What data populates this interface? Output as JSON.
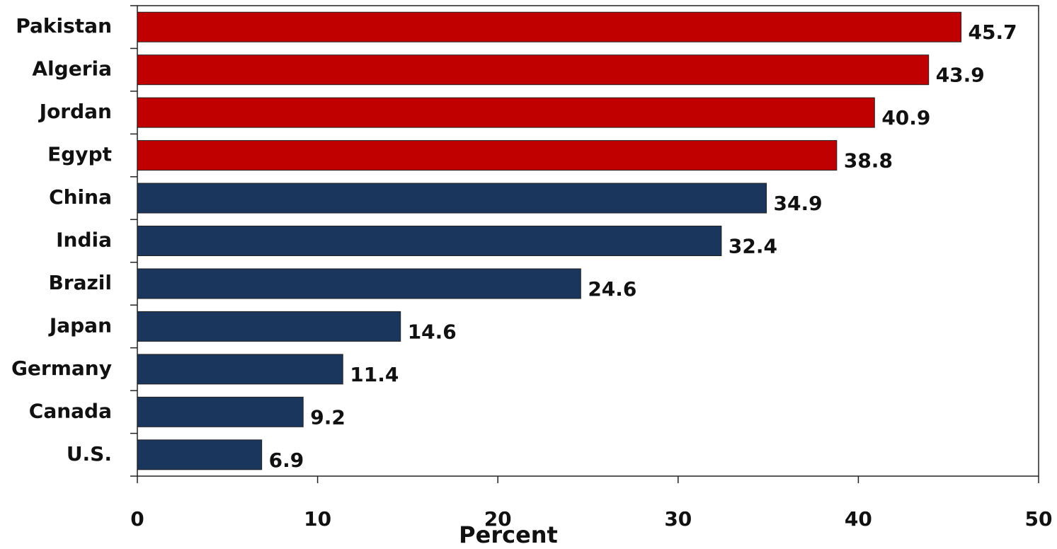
{
  "chart_data": {
    "type": "barh",
    "categories": [
      "Pakistan",
      "Algeria",
      "Jordan",
      "Egypt",
      "China",
      "India",
      "Brazil",
      "Japan",
      "Germany",
      "Canada",
      "U.S."
    ],
    "values": [
      45.7,
      43.9,
      40.9,
      38.8,
      34.9,
      32.4,
      24.6,
      14.6,
      11.4,
      9.2,
      6.9
    ],
    "colors": [
      "#c00000",
      "#c00000",
      "#c00000",
      "#c00000",
      "#1b365d",
      "#1b365d",
      "#1b365d",
      "#1b365d",
      "#1b365d",
      "#1b365d",
      "#1b365d"
    ],
    "xlabel": "Percent",
    "xlim": [
      0,
      50
    ],
    "xticks": [
      0,
      10,
      20,
      30,
      40,
      50
    ],
    "grid": false
  }
}
